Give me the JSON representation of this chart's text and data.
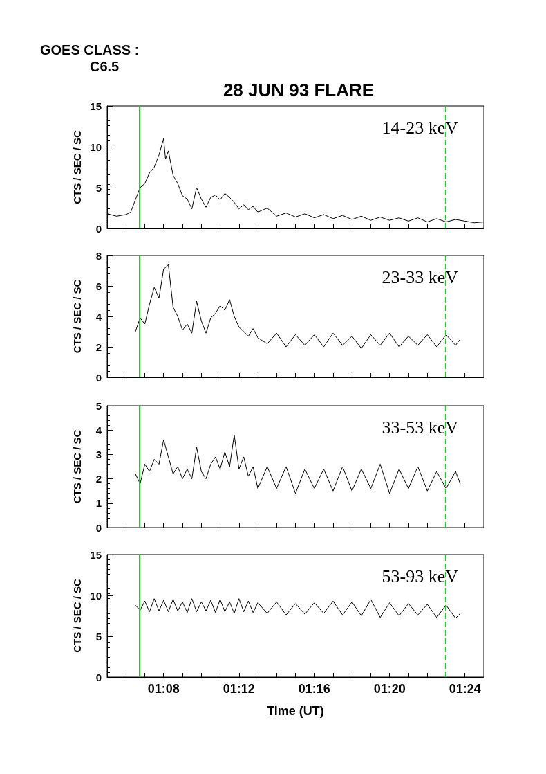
{
  "chart_data": [
    {
      "type": "line",
      "title": "28 JUN 93 FLARE",
      "annotations": [
        "GOES CLASS :",
        "C6.5"
      ],
      "ylabel": "CTS / SEC / SC",
      "tick_labels": "y",
      "xlim": [
        1.0833,
        1.4167
      ],
      "xticks": [
        {
          "value": 1.1,
          "label": null
        },
        {
          "value": 1.1167,
          "label": null
        },
        {
          "value": 1.1333,
          "label": null
        },
        {
          "value": 1.15,
          "label": null
        },
        {
          "value": 1.1667,
          "label": null
        },
        {
          "value": 1.1833,
          "label": null
        },
        {
          "value": 1.2,
          "label": null
        },
        {
          "value": 1.2167,
          "label": null
        },
        {
          "value": 1.2333,
          "label": null
        },
        {
          "value": 1.25,
          "label": null
        },
        {
          "value": 1.2667,
          "label": null
        },
        {
          "value": 1.2833,
          "label": null
        },
        {
          "value": 1.3,
          "label": null
        },
        {
          "value": 1.3167,
          "label": null
        },
        {
          "value": 1.3333,
          "label": null
        },
        {
          "value": 1.35,
          "label": null
        },
        {
          "value": 1.3667,
          "label": null
        },
        {
          "value": 1.3833,
          "label": null
        },
        {
          "value": 1.4,
          "label": null
        }
      ],
      "ylim": [
        0,
        15
      ],
      "yticks": [
        0,
        5,
        10,
        15
      ],
      "ref_lines": [
        {
          "axis": "x",
          "value": 1.112,
          "color": "#22cc22",
          "line_style": "solid"
        },
        {
          "axis": "x",
          "value": 1.383,
          "color": "#22cc22",
          "line_style": "dashed"
        }
      ],
      "x": [
        1.0833,
        1.0917,
        1.1,
        1.1042,
        1.1083,
        1.1125,
        1.1167,
        1.1208,
        1.125,
        1.1292,
        1.1333,
        1.135,
        1.1375,
        1.1417,
        1.1458,
        1.15,
        1.1542,
        1.1583,
        1.1625,
        1.1667,
        1.1708,
        1.175,
        1.1792,
        1.1833,
        1.1875,
        1.1917,
        1.1958,
        1.2,
        1.2042,
        1.2083,
        1.2125,
        1.2167,
        1.225,
        1.2333,
        1.2417,
        1.25,
        1.2583,
        1.2667,
        1.275,
        1.2833,
        1.2917,
        1.3,
        1.3083,
        1.3167,
        1.325,
        1.3333,
        1.3417,
        1.35,
        1.3583,
        1.3667,
        1.375,
        1.3833,
        1.3917,
        1.4,
        1.4083,
        1.4167
      ],
      "series": [
        {
          "name": "14-23 keV",
          "color": "#000000",
          "values": [
            1.8,
            1.5,
            1.7,
            2.0,
            3.5,
            5.0,
            5.5,
            6.8,
            7.5,
            9.0,
            11.0,
            8.5,
            9.5,
            6.5,
            5.5,
            4.0,
            3.6,
            2.4,
            5.0,
            3.6,
            2.6,
            3.8,
            4.1,
            3.5,
            4.3,
            3.8,
            3.2,
            2.4,
            2.9,
            2.3,
            2.7,
            2.0,
            2.5,
            1.5,
            1.9,
            1.4,
            1.8,
            1.3,
            1.7,
            1.2,
            1.6,
            1.1,
            1.5,
            1.0,
            1.4,
            1.0,
            1.3,
            0.9,
            1.3,
            0.8,
            1.2,
            0.8,
            1.1,
            0.9,
            0.7,
            0.8
          ]
        }
      ]
    },
    {
      "type": "line",
      "ylabel": "CTS / SEC / SC",
      "tick_labels": "y",
      "xlim": [
        1.0833,
        1.4167
      ],
      "xticks": [
        {
          "value": 1.1,
          "label": null
        },
        {
          "value": 1.1167,
          "label": null
        },
        {
          "value": 1.1333,
          "label": null
        },
        {
          "value": 1.15,
          "label": null
        },
        {
          "value": 1.1667,
          "label": null
        },
        {
          "value": 1.1833,
          "label": null
        },
        {
          "value": 1.2,
          "label": null
        },
        {
          "value": 1.2167,
          "label": null
        },
        {
          "value": 1.2333,
          "label": null
        },
        {
          "value": 1.25,
          "label": null
        },
        {
          "value": 1.2667,
          "label": null
        },
        {
          "value": 1.2833,
          "label": null
        },
        {
          "value": 1.3,
          "label": null
        },
        {
          "value": 1.3167,
          "label": null
        },
        {
          "value": 1.3333,
          "label": null
        },
        {
          "value": 1.35,
          "label": null
        },
        {
          "value": 1.3667,
          "label": null
        },
        {
          "value": 1.3833,
          "label": null
        },
        {
          "value": 1.4,
          "label": null
        }
      ],
      "ylim": [
        0,
        8
      ],
      "yticks": [
        0,
        2,
        4,
        6,
        8
      ],
      "ref_lines": [
        {
          "axis": "x",
          "value": 1.112,
          "color": "#22cc22",
          "line_style": "solid"
        },
        {
          "axis": "x",
          "value": 1.383,
          "color": "#22cc22",
          "line_style": "dashed"
        }
      ],
      "x": [
        1.1083,
        1.1125,
        1.1167,
        1.1208,
        1.125,
        1.1292,
        1.1333,
        1.1375,
        1.1417,
        1.1458,
        1.15,
        1.1542,
        1.1583,
        1.1625,
        1.1667,
        1.1708,
        1.175,
        1.1792,
        1.1833,
        1.1875,
        1.1917,
        1.1958,
        1.2,
        1.2042,
        1.2083,
        1.2125,
        1.2167,
        1.225,
        1.2333,
        1.2417,
        1.25,
        1.2583,
        1.2667,
        1.275,
        1.2833,
        1.2917,
        1.3,
        1.3083,
        1.3167,
        1.325,
        1.3333,
        1.3417,
        1.35,
        1.3583,
        1.3667,
        1.375,
        1.3833,
        1.3917,
        1.3958
      ],
      "series": [
        {
          "name": "23-33 keV",
          "color": "#000000",
          "values": [
            3.0,
            3.9,
            3.5,
            4.8,
            5.9,
            5.2,
            7.1,
            7.4,
            4.6,
            4.0,
            3.1,
            3.5,
            2.9,
            5.0,
            3.7,
            2.9,
            3.9,
            4.2,
            4.7,
            4.4,
            5.1,
            4.0,
            3.3,
            3.0,
            2.7,
            3.2,
            2.6,
            2.2,
            2.9,
            2.0,
            2.8,
            2.1,
            2.8,
            2.0,
            2.9,
            2.1,
            2.7,
            1.9,
            2.8,
            2.1,
            2.9,
            2.0,
            2.7,
            2.1,
            2.8,
            2.0,
            2.8,
            2.1,
            2.5
          ]
        }
      ]
    },
    {
      "type": "line",
      "ylabel": "CTS / SEC / SC",
      "tick_labels": "y",
      "xlim": [
        1.0833,
        1.4167
      ],
      "xticks": [
        {
          "value": 1.1,
          "label": null
        },
        {
          "value": 1.1167,
          "label": null
        },
        {
          "value": 1.1333,
          "label": null
        },
        {
          "value": 1.15,
          "label": null
        },
        {
          "value": 1.1667,
          "label": null
        },
        {
          "value": 1.1833,
          "label": null
        },
        {
          "value": 1.2,
          "label": null
        },
        {
          "value": 1.2167,
          "label": null
        },
        {
          "value": 1.2333,
          "label": null
        },
        {
          "value": 1.25,
          "label": null
        },
        {
          "value": 1.2667,
          "label": null
        },
        {
          "value": 1.2833,
          "label": null
        },
        {
          "value": 1.3,
          "label": null
        },
        {
          "value": 1.3167,
          "label": null
        },
        {
          "value": 1.3333,
          "label": null
        },
        {
          "value": 1.35,
          "label": null
        },
        {
          "value": 1.3667,
          "label": null
        },
        {
          "value": 1.3833,
          "label": null
        },
        {
          "value": 1.4,
          "label": null
        }
      ],
      "ylim": [
        0,
        5
      ],
      "yticks": [
        0,
        1,
        2,
        3,
        4,
        5
      ],
      "ref_lines": [
        {
          "axis": "x",
          "value": 1.112,
          "color": "#22cc22",
          "line_style": "solid"
        },
        {
          "axis": "x",
          "value": 1.383,
          "color": "#22cc22",
          "line_style": "dashed"
        }
      ],
      "x": [
        1.1083,
        1.1125,
        1.1167,
        1.1208,
        1.125,
        1.1292,
        1.1333,
        1.1375,
        1.1417,
        1.1458,
        1.15,
        1.1542,
        1.1583,
        1.1625,
        1.1667,
        1.1708,
        1.175,
        1.1792,
        1.1833,
        1.1875,
        1.1917,
        1.1958,
        1.2,
        1.2042,
        1.2083,
        1.2125,
        1.2167,
        1.225,
        1.2333,
        1.2417,
        1.25,
        1.2583,
        1.2667,
        1.275,
        1.2833,
        1.2917,
        1.3,
        1.3083,
        1.3167,
        1.325,
        1.3333,
        1.3417,
        1.35,
        1.3583,
        1.3667,
        1.375,
        1.3833,
        1.3917,
        1.3958
      ],
      "series": [
        {
          "name": "33-53 keV",
          "color": "#000000",
          "values": [
            2.2,
            1.8,
            2.6,
            2.3,
            2.8,
            2.6,
            3.6,
            2.9,
            2.2,
            2.5,
            2.0,
            2.4,
            2.0,
            3.3,
            2.3,
            2.0,
            2.6,
            2.9,
            2.4,
            3.1,
            2.5,
            3.8,
            2.4,
            2.9,
            2.1,
            2.5,
            1.6,
            2.5,
            1.6,
            2.5,
            1.4,
            2.4,
            1.6,
            2.4,
            1.5,
            2.5,
            1.5,
            2.4,
            1.6,
            2.6,
            1.4,
            2.4,
            1.6,
            2.5,
            1.5,
            2.3,
            1.6,
            2.3,
            1.8
          ]
        }
      ]
    },
    {
      "type": "line",
      "ylabel": "CTS / SEC / SC",
      "xlabel": "Time (UT)",
      "xlim": [
        1.0833,
        1.4167
      ],
      "xticks": [
        {
          "value": 1.1,
          "label": null
        },
        {
          "value": 1.1167,
          "label": null
        },
        {
          "value": 1.1333,
          "label": "01:08"
        },
        {
          "value": 1.15,
          "label": null
        },
        {
          "value": 1.1667,
          "label": null
        },
        {
          "value": 1.1833,
          "label": null
        },
        {
          "value": 1.2,
          "label": "01:12"
        },
        {
          "value": 1.2167,
          "label": null
        },
        {
          "value": 1.2333,
          "label": null
        },
        {
          "value": 1.25,
          "label": null
        },
        {
          "value": 1.2667,
          "label": "01:16"
        },
        {
          "value": 1.2833,
          "label": null
        },
        {
          "value": 1.3,
          "label": null
        },
        {
          "value": 1.3167,
          "label": null
        },
        {
          "value": 1.3333,
          "label": "01:20"
        },
        {
          "value": 1.35,
          "label": null
        },
        {
          "value": 1.3667,
          "label": null
        },
        {
          "value": 1.3833,
          "label": null
        },
        {
          "value": 1.4,
          "label": "01:24"
        }
      ],
      "ylim": [
        0,
        15
      ],
      "yticks": [
        0,
        5,
        10,
        15
      ],
      "ref_lines": [
        {
          "axis": "x",
          "value": 1.112,
          "color": "#22cc22",
          "line_style": "solid"
        },
        {
          "axis": "x",
          "value": 1.383,
          "color": "#22cc22",
          "line_style": "dashed"
        }
      ],
      "x": [
        1.1083,
        1.1125,
        1.1167,
        1.1208,
        1.125,
        1.1292,
        1.1333,
        1.1375,
        1.1417,
        1.1458,
        1.15,
        1.1542,
        1.1583,
        1.1625,
        1.1667,
        1.1708,
        1.175,
        1.1792,
        1.1833,
        1.1875,
        1.1917,
        1.1958,
        1.2,
        1.2042,
        1.2083,
        1.2125,
        1.2167,
        1.225,
        1.2333,
        1.2417,
        1.25,
        1.2583,
        1.2667,
        1.275,
        1.2833,
        1.2917,
        1.3,
        1.3083,
        1.3167,
        1.325,
        1.3333,
        1.3417,
        1.35,
        1.3583,
        1.3667,
        1.375,
        1.3833,
        1.3917,
        1.3958
      ],
      "series": [
        {
          "name": "53-93 keV",
          "color": "#000000",
          "values": [
            8.8,
            8.2,
            9.3,
            8.0,
            9.6,
            8.1,
            9.4,
            8.0,
            9.5,
            8.1,
            9.2,
            7.9,
            9.6,
            8.0,
            9.2,
            8.1,
            9.4,
            7.9,
            9.5,
            8.0,
            9.2,
            7.8,
            9.6,
            8.0,
            9.3,
            7.9,
            9.1,
            7.8,
            9.2,
            7.6,
            9.0,
            7.7,
            9.1,
            7.8,
            9.3,
            7.6,
            9.2,
            7.5,
            9.5,
            7.3,
            9.1,
            7.5,
            9.0,
            7.6,
            8.9,
            7.3,
            8.8,
            7.2,
            7.8
          ]
        }
      ]
    }
  ]
}
